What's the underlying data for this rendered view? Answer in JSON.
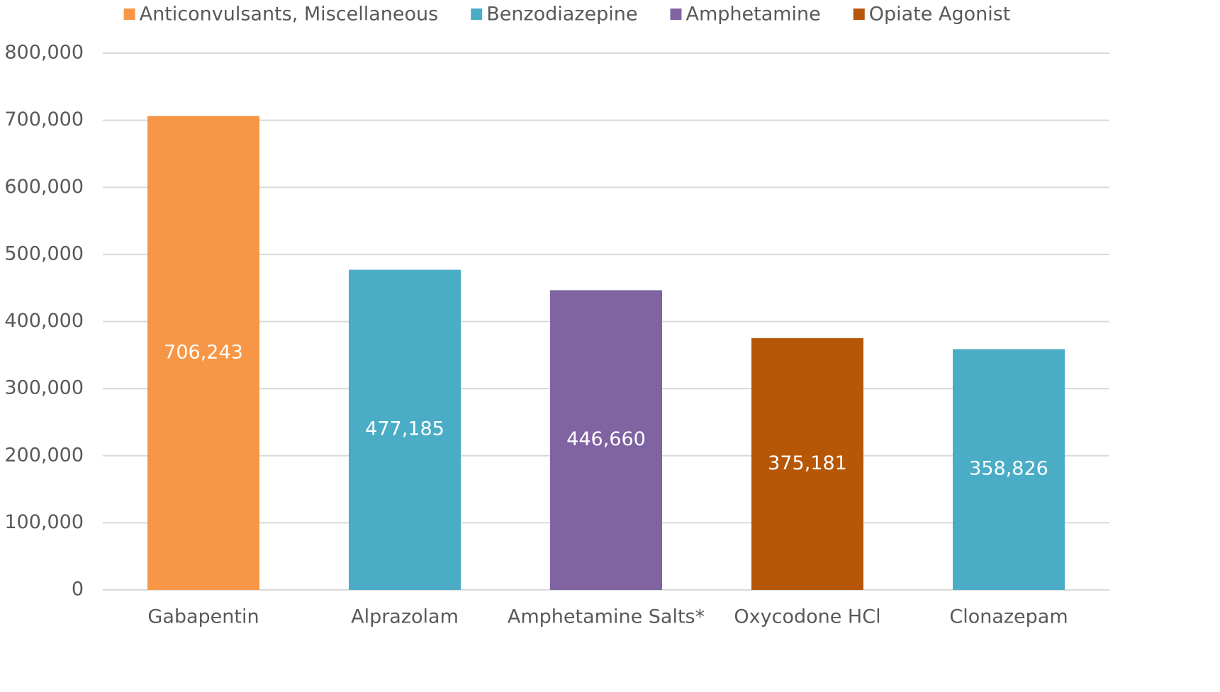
{
  "chart_data": {
    "type": "bar",
    "categories": [
      "Gabapentin",
      "Alprazolam",
      "Amphetamine Salts*",
      "Oxycodone HCl",
      "Clonazepam"
    ],
    "series": [
      {
        "name": "Anticonvulsants, Miscellaneous",
        "color": "#f79646",
        "values": [
          706243,
          null,
          null,
          null,
          null
        ],
        "value_labels": [
          "706,243",
          null,
          null,
          null,
          null
        ]
      },
      {
        "name": "Benzodiazepine",
        "color": "#4bacc6",
        "values": [
          null,
          477185,
          null,
          null,
          358826
        ],
        "value_labels": [
          null,
          "477,185",
          null,
          null,
          "358,826"
        ]
      },
      {
        "name": "Amphetamine",
        "color": "#8064a2",
        "values": [
          null,
          null,
          446660,
          null,
          null
        ],
        "value_labels": [
          null,
          null,
          "446,660",
          null,
          null
        ]
      },
      {
        "name": "Opiate Agonist",
        "color": "#b65708",
        "values": [
          null,
          null,
          null,
          375181,
          null
        ],
        "value_labels": [
          null,
          null,
          null,
          "375,181",
          null
        ]
      }
    ],
    "ylim": [
      0,
      800000
    ],
    "yticks": [
      0,
      {
        "value": 100000,
        "label": "100,000"
      },
      {
        "value": 200000,
        "label": "200,000"
      },
      {
        "value": 300000,
        "label": "300,000"
      },
      {
        "value": 400000,
        "label": "400,000"
      },
      {
        "value": 500000,
        "label": "500,000"
      },
      {
        "value": 600000,
        "label": "600,000"
      },
      {
        "value": 700000,
        "label": "700,000"
      },
      {
        "value": 800000,
        "label": "800,000"
      }
    ],
    "grid": true,
    "legend": "top"
  }
}
